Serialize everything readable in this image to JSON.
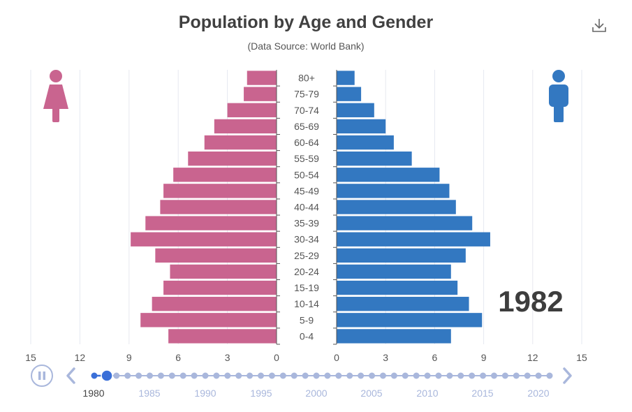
{
  "chart_data": {
    "type": "bar",
    "title": "Population by Age and Gender",
    "subtitle": "(Data Source: World Bank)",
    "categories": [
      "0-4",
      "5-9",
      "10-14",
      "15-19",
      "20-24",
      "25-29",
      "30-34",
      "35-39",
      "40-44",
      "45-49",
      "50-54",
      "55-59",
      "60-64",
      "65-69",
      "70-74",
      "75-79",
      "80+"
    ],
    "series": [
      {
        "name": "Female",
        "color": "#c9648f",
        "values": [
          6.6,
          8.3,
          7.6,
          6.9,
          6.5,
          7.4,
          8.9,
          8.0,
          7.1,
          6.9,
          6.3,
          5.4,
          4.4,
          3.8,
          3.0,
          2.0,
          1.8
        ]
      },
      {
        "name": "Male",
        "color": "#3378c1",
        "values": [
          7.0,
          8.9,
          8.1,
          7.4,
          7.0,
          7.9,
          9.4,
          8.3,
          7.3,
          6.9,
          6.3,
          4.6,
          3.5,
          3.0,
          2.3,
          1.5,
          1.1
        ]
      }
    ],
    "xlim": [
      0,
      15
    ],
    "ticks": [
      "15",
      "12",
      "9",
      "6",
      "3",
      "0",
      "0",
      "3",
      "6",
      "9",
      "12",
      "15"
    ],
    "current_year": "1982",
    "grid": true
  },
  "timeline": {
    "years": [
      "1980",
      "1985",
      "1990",
      "1995",
      "2000",
      "2005",
      "2010",
      "2015",
      "2020"
    ],
    "selected_label": "1980",
    "current_position": 0.02,
    "dot_count": 42
  },
  "icons": {
    "download": "download-icon",
    "female": "female-icon",
    "male": "male-icon",
    "pause": "pause-icon",
    "prev": "chevron-left-icon",
    "next": "chevron-right-icon"
  },
  "colors": {
    "female": "#c9648f",
    "male": "#3378c1",
    "timeline": "#a9b7dc",
    "timeline_active": "#3a6fd8",
    "text": "#333333",
    "grid": "#e6e8f0"
  }
}
